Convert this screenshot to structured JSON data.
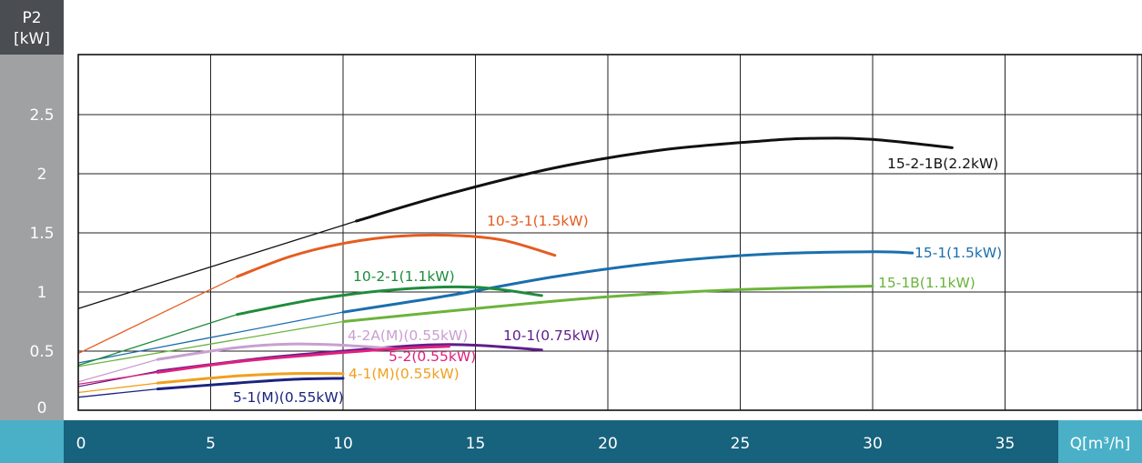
{
  "chart_data": {
    "type": "line",
    "xlabel": "Q[m³/h]",
    "ylabel_line1": "P2",
    "ylabel_line2": "[kW]",
    "xlim": [
      0,
      40
    ],
    "ylim": [
      0,
      3
    ],
    "x_ticks": [
      "0",
      "5",
      "10",
      "15",
      "20",
      "25",
      "30",
      "35"
    ],
    "y_ticks": [
      "0",
      "0.5",
      "1",
      "1.5",
      "2",
      "2.5"
    ],
    "grid": true,
    "colors": {
      "left_band": "#a0a1a2",
      "left_band_top": "#4a4d52",
      "bottom_band": "#17627d",
      "bottom_band_light": "#4ab0c8"
    },
    "series": [
      {
        "name": "15-2-1B(2.2kW)",
        "color": "#111111",
        "x": [
          0,
          10.5,
          14,
          18,
          22,
          26,
          28,
          30,
          33
        ],
        "y": [
          0.86,
          1.6,
          1.83,
          2.05,
          2.2,
          2.28,
          2.3,
          2.29,
          2.22
        ],
        "solid_from": 10.5
      },
      {
        "name": "10-3-1(1.5kW)",
        "color": "#e55c20",
        "x": [
          0,
          6,
          8,
          10,
          12,
          14,
          16,
          18
        ],
        "y": [
          0.48,
          1.13,
          1.3,
          1.41,
          1.47,
          1.48,
          1.44,
          1.31
        ],
        "solid_from": 6
      },
      {
        "name": "15-1(1.5kW)",
        "color": "#1a6fad",
        "x": [
          0,
          10,
          14,
          18,
          22,
          26,
          30,
          31.5
        ],
        "y": [
          0.4,
          0.83,
          0.97,
          1.13,
          1.25,
          1.32,
          1.34,
          1.33
        ],
        "solid_from": 10
      },
      {
        "name": "15-1B(1.1kW)",
        "color": "#6bb43a",
        "x": [
          0,
          10,
          15,
          20,
          25,
          30
        ],
        "y": [
          0.37,
          0.75,
          0.86,
          0.96,
          1.02,
          1.05
        ],
        "solid_from": 10
      },
      {
        "name": "10-2-1(1.1kW)",
        "color": "#1e8c3c",
        "x": [
          0,
          6,
          9,
          12,
          15,
          17.5
        ],
        "y": [
          0.38,
          0.81,
          0.94,
          1.02,
          1.04,
          0.97
        ],
        "solid_from": 6
      },
      {
        "name": "10-1(0.75kW)",
        "color": "#5e1e8c",
        "x": [
          0,
          3,
          7,
          10,
          13,
          15,
          17.5
        ],
        "y": [
          0.2,
          0.33,
          0.44,
          0.5,
          0.55,
          0.55,
          0.51
        ],
        "solid_from": 3
      },
      {
        "name": "4-2A(M)(0.55kW)",
        "color": "#c8a0d0",
        "x": [
          0,
          3,
          6,
          8,
          10,
          12
        ],
        "y": [
          0.24,
          0.43,
          0.53,
          0.56,
          0.55,
          0.52
        ],
        "solid_from": 3
      },
      {
        "name": "5-2(0.55kW)",
        "color": "#e0207e",
        "x": [
          0,
          3,
          6,
          9,
          12,
          14
        ],
        "y": [
          0.22,
          0.32,
          0.41,
          0.47,
          0.52,
          0.54
        ],
        "solid_from": 3
      },
      {
        "name": "4-1(M)(0.55kW)",
        "color": "#f0a020",
        "x": [
          0,
          3,
          6,
          8,
          10
        ],
        "y": [
          0.15,
          0.23,
          0.29,
          0.31,
          0.31
        ],
        "solid_from": 3
      },
      {
        "name": "5-1(M)(0.55kW)",
        "color": "#1a237e",
        "x": [
          0,
          3,
          6,
          8,
          10
        ],
        "y": [
          0.11,
          0.18,
          0.23,
          0.26,
          0.27
        ],
        "solid_from": 3
      }
    ]
  }
}
